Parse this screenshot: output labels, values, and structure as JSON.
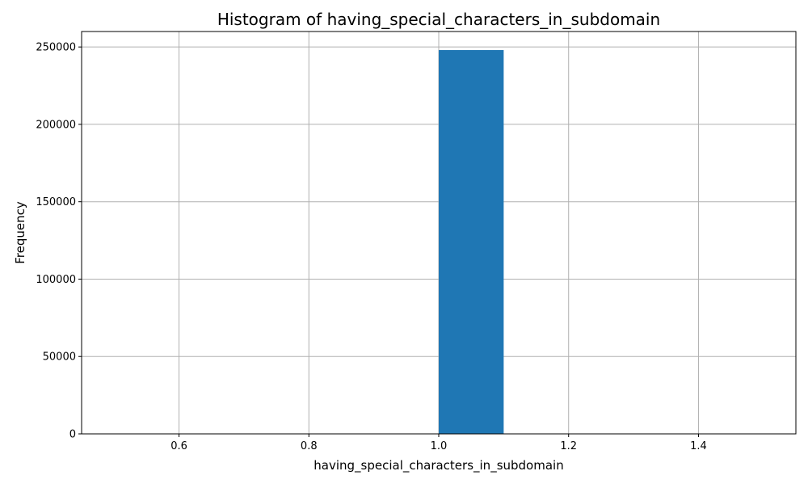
{
  "chart_data": {
    "type": "bar",
    "title": "Histogram of having_special_characters_in_subdomain",
    "xlabel": "having_special_characters_in_subdomain",
    "ylabel": "Frequency",
    "xlim": [
      0.45,
      1.55
    ],
    "ylim": [
      0,
      260000
    ],
    "xticks": [
      0.6,
      0.8,
      1.0,
      1.2,
      1.4
    ],
    "xtick_labels": [
      "0.6",
      "0.8",
      "1.0",
      "1.2",
      "1.4"
    ],
    "yticks": [
      0,
      50000,
      100000,
      150000,
      200000,
      250000
    ],
    "ytick_labels": [
      "0",
      "50000",
      "100000",
      "150000",
      "200000",
      "250000"
    ],
    "bins": [
      {
        "x0": 1.0,
        "x1": 1.1,
        "count": 248000
      }
    ],
    "grid": true,
    "colors": {
      "bar": "#1f77b4",
      "grid": "#b0b0b0"
    }
  }
}
